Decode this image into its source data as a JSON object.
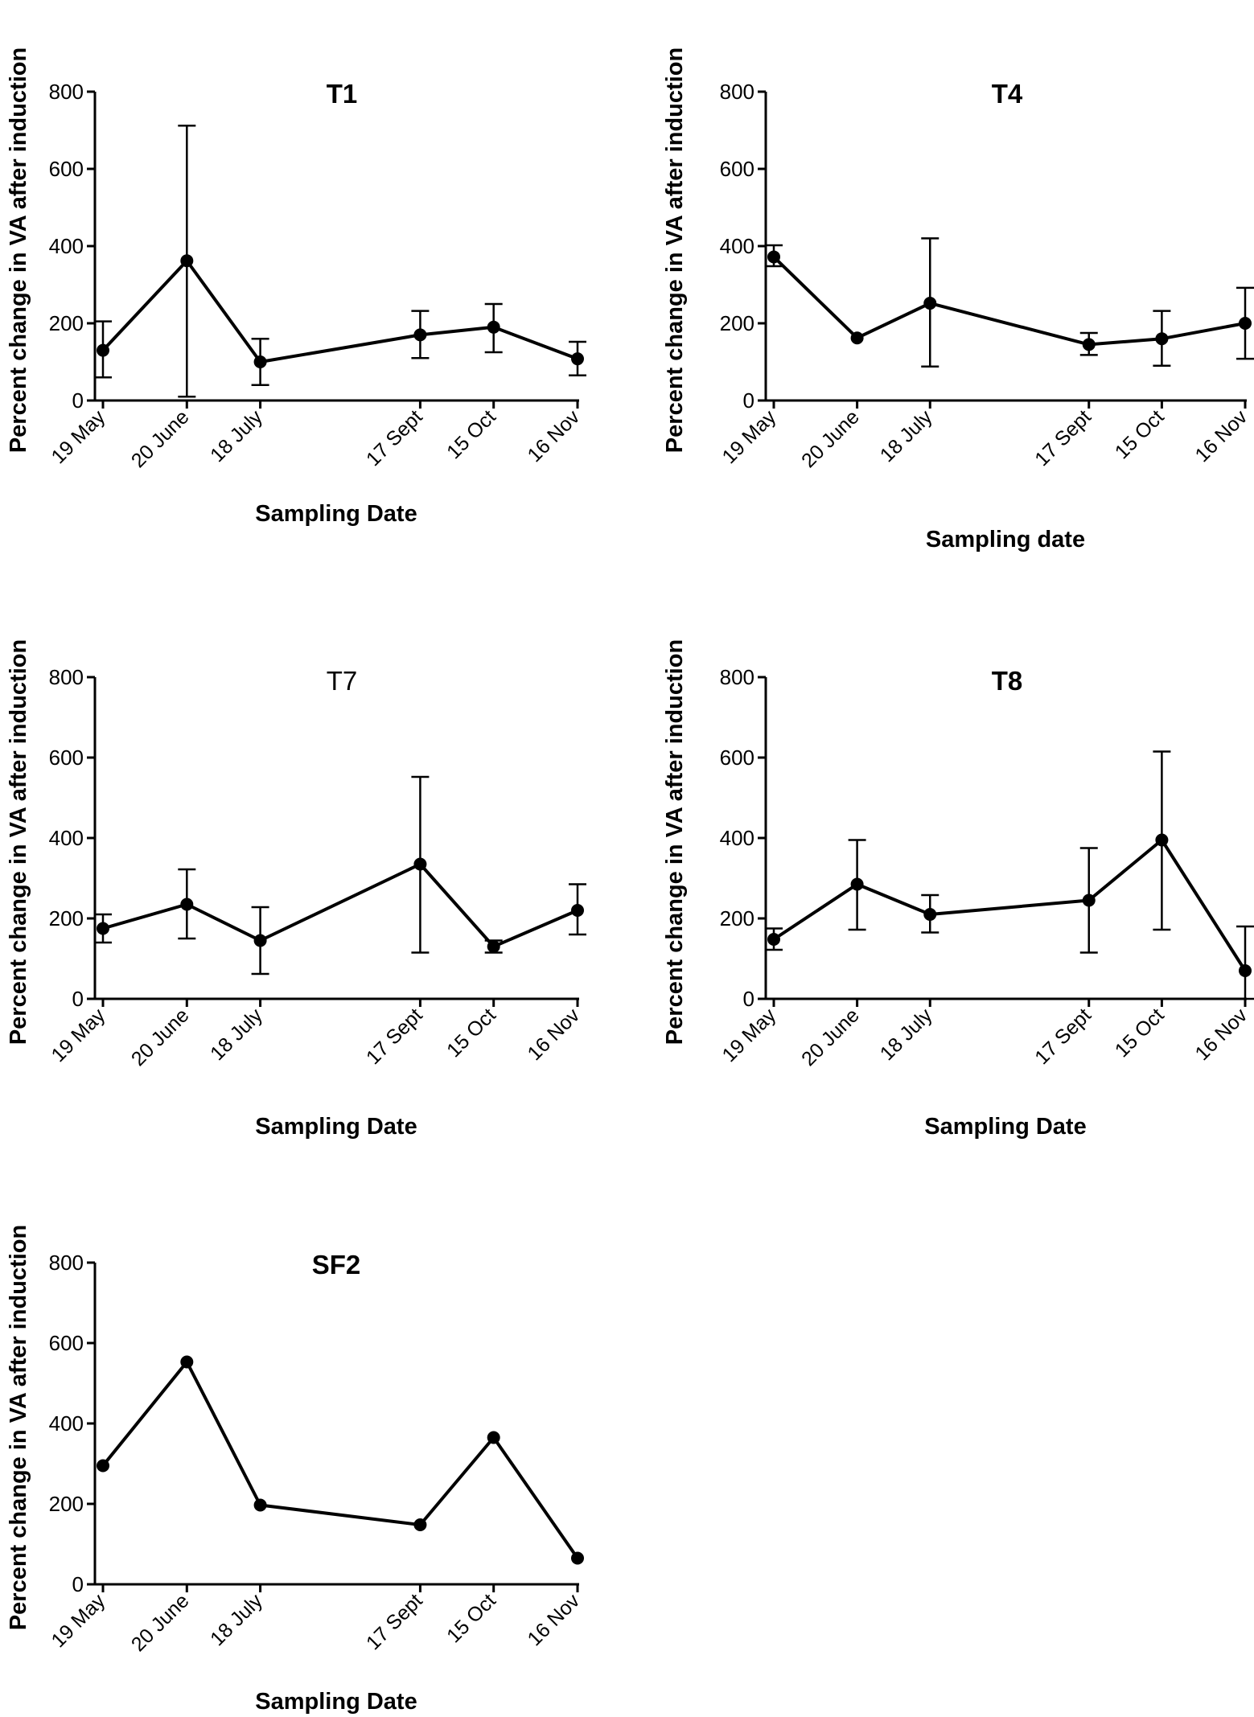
{
  "chart_data": [
    {
      "type": "line",
      "title": "T1",
      "title_bold": true,
      "xlabel": "Sampling Date",
      "ylabel": "Percent change in VA after induction",
      "ylim": [
        0,
        800
      ],
      "yticks": [
        0,
        200,
        400,
        600,
        800
      ],
      "categories": [
        "19 May",
        "20 June",
        "18 July",
        "17 Sept",
        "15 Oct",
        "16 Nov"
      ],
      "x_days": [
        0,
        32,
        60,
        121,
        149,
        181
      ],
      "series": [
        {
          "name": "T1",
          "values": [
            130,
            362,
            100,
            170,
            190,
            108
          ],
          "err_low": [
            60,
            10,
            40,
            110,
            125,
            65
          ],
          "err_high": [
            205,
            712,
            160,
            232,
            250,
            152
          ]
        }
      ]
    },
    {
      "type": "line",
      "title": "T4",
      "title_bold": true,
      "xlabel": "Sampling date",
      "ylabel": "Percent change in VA after induction",
      "ylim": [
        0,
        800
      ],
      "yticks": [
        0,
        200,
        400,
        600,
        800
      ],
      "categories": [
        "19 May",
        "20 June",
        "18 July",
        "17 Sept",
        "15 Oct",
        "16 Nov"
      ],
      "x_days": [
        0,
        32,
        60,
        121,
        149,
        181
      ],
      "series": [
        {
          "name": "T4",
          "values": [
            372,
            162,
            252,
            145,
            160,
            200
          ],
          "err_low": [
            348,
            162,
            88,
            118,
            90,
            108
          ],
          "err_high": [
            402,
            162,
            420,
            175,
            232,
            292
          ]
        }
      ]
    },
    {
      "type": "line",
      "title": "T7",
      "title_bold": false,
      "xlabel": "Sampling Date",
      "ylabel": "Percent change in VA after induction",
      "ylim": [
        0,
        800
      ],
      "yticks": [
        0,
        200,
        400,
        600,
        800
      ],
      "categories": [
        "19 May",
        "20 June",
        "18 July",
        "17 Sept",
        "15 Oct",
        "16 Nov"
      ],
      "x_days": [
        0,
        32,
        60,
        121,
        149,
        181
      ],
      "series": [
        {
          "name": "T7",
          "values": [
            175,
            235,
            145,
            335,
            130,
            220
          ],
          "err_low": [
            140,
            150,
            62,
            115,
            115,
            160
          ],
          "err_high": [
            210,
            322,
            228,
            552,
            145,
            285
          ]
        }
      ]
    },
    {
      "type": "line",
      "title": "T8",
      "title_bold": true,
      "xlabel": "Sampling Date",
      "ylabel": "Percent change in VA after induction",
      "ylim": [
        0,
        800
      ],
      "yticks": [
        0,
        200,
        400,
        600,
        800
      ],
      "categories": [
        "19 May",
        "20 June",
        "18 July",
        "17 Sept",
        "15 Oct",
        "16 Nov"
      ],
      "x_days": [
        0,
        32,
        60,
        121,
        149,
        181
      ],
      "series": [
        {
          "name": "T8",
          "values": [
            148,
            285,
            210,
            245,
            395,
            70
          ],
          "err_low": [
            122,
            172,
            165,
            115,
            172,
            0
          ],
          "err_high": [
            175,
            395,
            258,
            375,
            615,
            180
          ]
        }
      ]
    },
    {
      "type": "line",
      "title": "SF2",
      "title_bold": true,
      "xlabel": "Sampling Date",
      "ylabel": "Percent change in VA after induction",
      "ylim": [
        0,
        800
      ],
      "yticks": [
        0,
        200,
        400,
        600,
        800
      ],
      "categories": [
        "19 May",
        "20 June",
        "18 July",
        "17 Sept",
        "15 Oct",
        "16 Nov"
      ],
      "x_days": [
        0,
        32,
        60,
        121,
        149,
        181
      ],
      "series": [
        {
          "name": "SF2",
          "values": [
            295,
            553,
            197,
            148,
            365,
            65
          ],
          "err_low": [
            295,
            553,
            197,
            148,
            365,
            65
          ],
          "err_high": [
            295,
            553,
            197,
            148,
            365,
            65
          ]
        }
      ]
    }
  ]
}
